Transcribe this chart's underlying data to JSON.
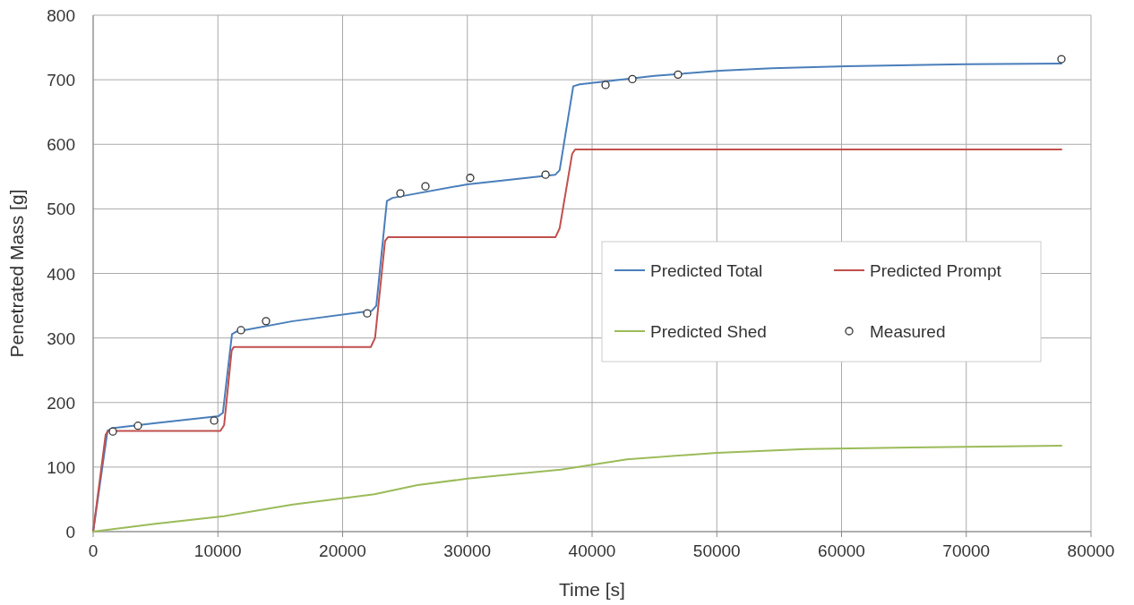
{
  "chart_data": {
    "type": "line",
    "xlabel": "Time [s]",
    "ylabel": "Penetrated Mass [g]",
    "xlim": [
      0,
      80000
    ],
    "xticks": [
      0,
      10000,
      20000,
      30000,
      40000,
      50000,
      60000,
      70000,
      80000
    ],
    "ylim": [
      0,
      800
    ],
    "yticks": [
      0,
      100,
      200,
      300,
      400,
      500,
      600,
      700,
      800
    ],
    "grid": true,
    "legend": "right",
    "series": [
      {
        "name": "Predicted Total",
        "color": "#4a7ebb",
        "x": [
          0,
          1150,
          1500,
          5000,
          10050,
          10400,
          11130,
          11500,
          16000,
          22330,
          22700,
          23550,
          24000,
          30000,
          37060,
          37400,
          38490,
          39000,
          45000,
          50270,
          54430,
          60400,
          70000,
          77630
        ],
        "values": [
          0,
          156,
          160,
          168,
          179,
          184,
          306,
          310,
          326,
          342,
          350,
          512,
          517,
          538,
          553,
          560,
          690,
          693,
          706,
          714,
          718,
          721,
          724,
          725
        ]
      },
      {
        "name": "Predicted Prompt",
        "color": "#c0504d",
        "x": [
          0,
          1000,
          1200,
          10200,
          10500,
          11100,
          11270,
          22260,
          22600,
          23400,
          23630,
          37060,
          37400,
          38400,
          38640,
          77630
        ],
        "values": [
          0,
          150,
          156,
          156,
          165,
          280,
          286,
          286,
          300,
          450,
          456,
          456,
          470,
          585,
          592,
          592
        ]
      },
      {
        "name": "Predicted Shed",
        "color": "#9bbb59",
        "x": [
          0,
          5000,
          10480,
          16000,
          22550,
          26000,
          30000,
          37490,
          42800,
          50000,
          57160,
          64340,
          77630
        ],
        "values": [
          0,
          12,
          24,
          42,
          58,
          72,
          82,
          96,
          112,
          122,
          128,
          130,
          133
        ]
      },
      {
        "name": "Measured",
        "type": "scatter",
        "marker": "circle",
        "color": "#333333",
        "x": [
          1580,
          3590,
          9700,
          11850,
          13860,
          21970,
          24630,
          26640,
          30230,
          36270,
          41080,
          43230,
          46890,
          77630
        ],
        "values": [
          155,
          164,
          172,
          312,
          326,
          338,
          524,
          535,
          548,
          553,
          692,
          701,
          708,
          732
        ]
      }
    ]
  }
}
